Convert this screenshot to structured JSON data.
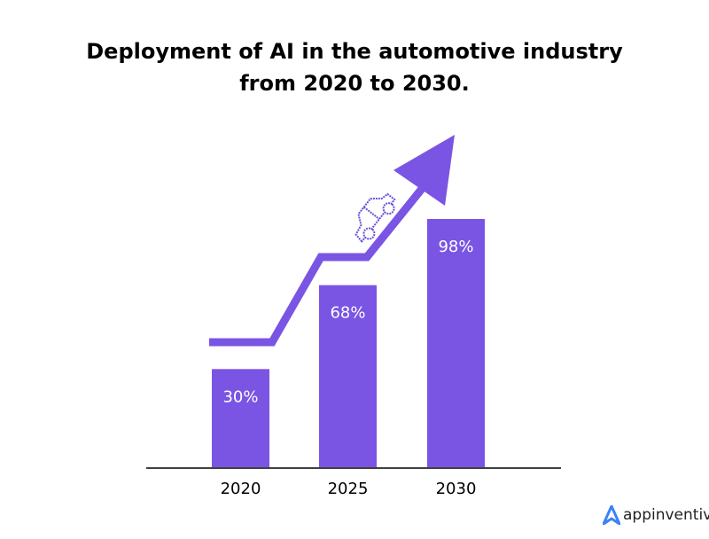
{
  "chart_data": {
    "type": "bar",
    "title_lines": [
      "Deployment of AI in the automotive industry",
      "from 2020 to 2030."
    ],
    "categories": [
      "2020",
      "2025",
      "2030"
    ],
    "values": [
      30,
      68,
      98
    ],
    "data_labels": [
      "30%",
      "68%",
      "98%"
    ],
    "xlabel": "",
    "ylabel": "",
    "grid": false,
    "bar_color": "#7a55e3",
    "annotation": "rising trend arrow with car icon"
  },
  "brand": {
    "name": "appinventiv",
    "color": "#3b82f6"
  }
}
